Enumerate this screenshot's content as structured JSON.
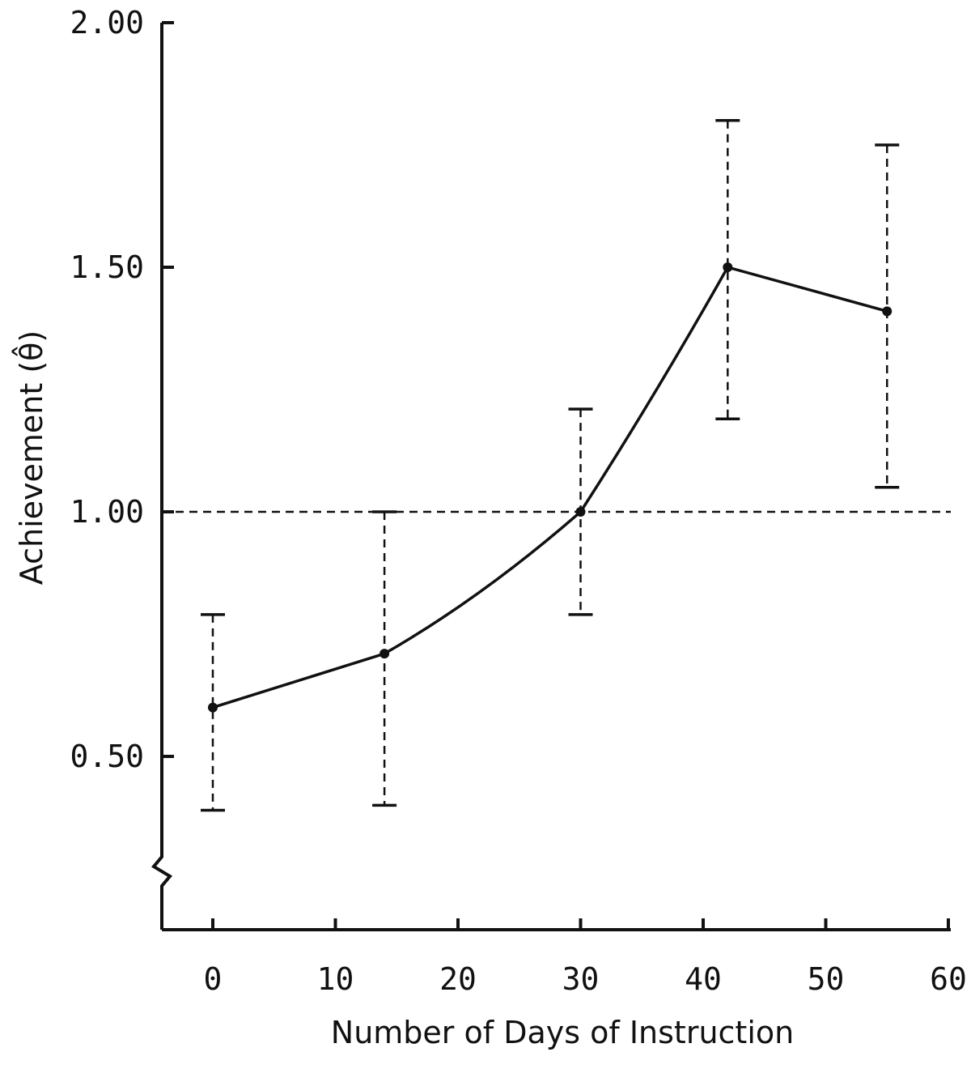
{
  "chart_data": {
    "type": "line",
    "title": "",
    "xlabel": "Number of Days of Instruction",
    "ylabel": "Achievement (θ̂)",
    "xlim": [
      -4,
      60
    ],
    "ylim": [
      0.3,
      2.0
    ],
    "x_ticks": [
      0,
      10,
      20,
      30,
      40,
      50,
      60
    ],
    "y_ticks": [
      0.5,
      1.0,
      1.5,
      2.0
    ],
    "x_tick_labels": [
      "0",
      "10",
      "20",
      "30",
      "40",
      "50",
      "60"
    ],
    "y_tick_labels": [
      "0.50",
      "1.00",
      "1.50",
      "2.00"
    ],
    "axis_break": "y-axis below 0.50",
    "reference_line": {
      "y": 1.0,
      "style": "dashed"
    },
    "grid": false,
    "series": [
      {
        "x": [
          0,
          14,
          30,
          42,
          55
        ],
        "y": [
          0.6,
          0.71,
          1.0,
          1.5,
          1.41
        ],
        "error_low": [
          0.39,
          0.4,
          0.79,
          1.19,
          1.05
        ],
        "error_high": [
          0.79,
          1.0,
          1.21,
          1.8,
          1.75
        ],
        "color": "#111111",
        "marker": "dot",
        "error_style": "dashed"
      }
    ]
  }
}
